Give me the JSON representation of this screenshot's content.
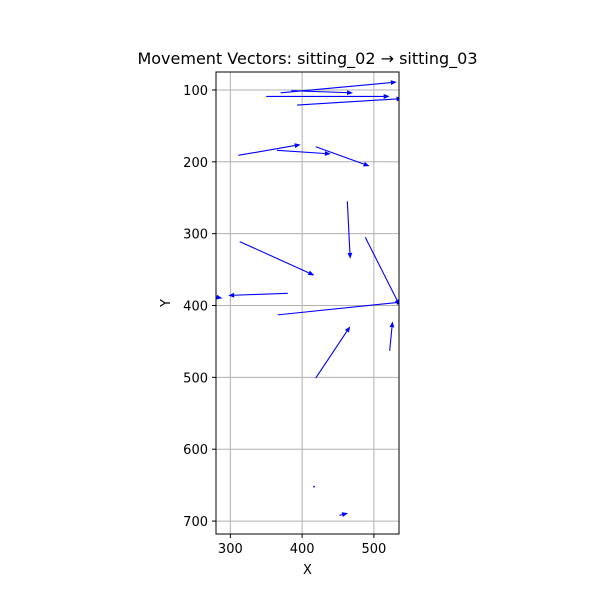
{
  "chart_data": {
    "type": "quiver",
    "title": "Movement Vectors: sitting_02 → sitting_03",
    "xlabel": "X",
    "ylabel": "Y",
    "xlim": [
      280,
      535
    ],
    "ylim": [
      718,
      75
    ],
    "y_inverted": true,
    "grid": true,
    "xticks": [
      300,
      400,
      500
    ],
    "yticks": [
      100,
      200,
      300,
      400,
      500,
      600,
      700
    ],
    "arrow_color": "#0000ff",
    "vectors": [
      {
        "x0": 370,
        "y0": 104,
        "x1": 532,
        "y1": 89
      },
      {
        "x0": 385,
        "y0": 101,
        "x1": 471,
        "y1": 104
      },
      {
        "x0": 350,
        "y0": 109,
        "x1": 522,
        "y1": 109
      },
      {
        "x0": 393,
        "y0": 121,
        "x1": 540,
        "y1": 112
      },
      {
        "x0": 311,
        "y0": 191,
        "x1": 398,
        "y1": 176
      },
      {
        "x0": 365,
        "y0": 184,
        "x1": 440,
        "y1": 189
      },
      {
        "x0": 419,
        "y0": 179,
        "x1": 494,
        "y1": 206
      },
      {
        "x0": 463,
        "y0": 255,
        "x1": 467,
        "y1": 335
      },
      {
        "x0": 313,
        "y0": 311,
        "x1": 417,
        "y1": 358
      },
      {
        "x0": 488,
        "y0": 305,
        "x1": 536,
        "y1": 400
      },
      {
        "x0": 380,
        "y0": 383,
        "x1": 297,
        "y1": 386
      },
      {
        "x0": 275,
        "y0": 387,
        "x1": 289,
        "y1": 390
      },
      {
        "x0": 366,
        "y0": 413,
        "x1": 540,
        "y1": 395
      },
      {
        "x0": 419,
        "y0": 501,
        "x1": 467,
        "y1": 429
      },
      {
        "x0": 522,
        "y0": 463,
        "x1": 526,
        "y1": 422
      },
      {
        "x0": 417,
        "y0": 651,
        "x1": 416,
        "y1": 654
      },
      {
        "x0": 452,
        "y0": 692,
        "x1": 464,
        "y1": 689
      }
    ]
  }
}
